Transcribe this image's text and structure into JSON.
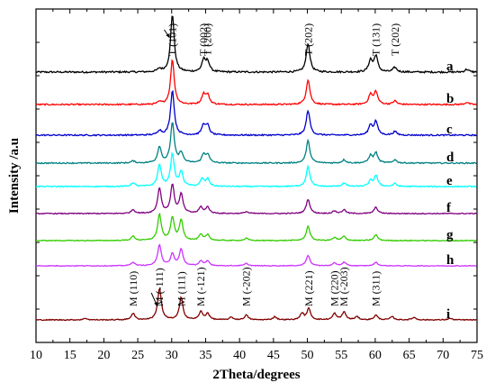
{
  "chart_data": {
    "type": "line",
    "title": "",
    "xlabel": "2Theta/degrees",
    "ylabel": "Intensity /a.u",
    "xlim": [
      10,
      75
    ],
    "x_ticks": [
      "10",
      "15",
      "20",
      "25",
      "30",
      "35",
      "40",
      "45",
      "50",
      "55",
      "60",
      "65",
      "70",
      "75"
    ],
    "y_ticks_shown": false,
    "grid": false,
    "legend": "none",
    "series": [
      {
        "name": "a",
        "color": "#000000",
        "peaks": [
          [
            28.2,
            0.05
          ],
          [
            30.1,
            1.0
          ],
          [
            34.7,
            0.2
          ],
          [
            35.3,
            0.18
          ],
          [
            50.1,
            0.5
          ],
          [
            59.3,
            0.2
          ],
          [
            60.1,
            0.28
          ],
          [
            62.9,
            0.08
          ],
          [
            73.5,
            0.05
          ]
        ]
      },
      {
        "name": "b",
        "color": "#ff0000",
        "peaks": [
          [
            28.2,
            0.05
          ],
          [
            30.1,
            1.0
          ],
          [
            34.7,
            0.22
          ],
          [
            35.3,
            0.2
          ],
          [
            50.1,
            0.55
          ],
          [
            59.3,
            0.22
          ],
          [
            60.1,
            0.28
          ],
          [
            62.9,
            0.08
          ],
          [
            73.5,
            0.05
          ]
        ]
      },
      {
        "name": "c",
        "color": "#0000cc",
        "peaks": [
          [
            28.2,
            0.1
          ],
          [
            30.1,
            1.0
          ],
          [
            34.7,
            0.22
          ],
          [
            35.3,
            0.2
          ],
          [
            50.1,
            0.55
          ],
          [
            59.3,
            0.22
          ],
          [
            60.1,
            0.3
          ],
          [
            62.9,
            0.08
          ]
        ]
      },
      {
        "name": "d",
        "color": "#008080",
        "peaks": [
          [
            24.3,
            0.05
          ],
          [
            28.2,
            0.4
          ],
          [
            30.1,
            1.0
          ],
          [
            31.4,
            0.25
          ],
          [
            34.7,
            0.2
          ],
          [
            35.3,
            0.2
          ],
          [
            50.1,
            0.55
          ],
          [
            55.4,
            0.08
          ],
          [
            59.3,
            0.18
          ],
          [
            60.1,
            0.25
          ],
          [
            62.9,
            0.08
          ]
        ]
      },
      {
        "name": "e",
        "color": "#00ffff",
        "peaks": [
          [
            24.3,
            0.1
          ],
          [
            28.2,
            0.6
          ],
          [
            30.1,
            0.9
          ],
          [
            31.4,
            0.4
          ],
          [
            34.5,
            0.2
          ],
          [
            35.3,
            0.2
          ],
          [
            50.1,
            0.55
          ],
          [
            55.4,
            0.1
          ],
          [
            59.3,
            0.15
          ],
          [
            60.1,
            0.3
          ],
          [
            62.9,
            0.08
          ]
        ]
      },
      {
        "name": "f",
        "color": "#800080",
        "peaks": [
          [
            24.3,
            0.12
          ],
          [
            28.2,
            0.8
          ],
          [
            30.1,
            0.9
          ],
          [
            31.4,
            0.6
          ],
          [
            34.3,
            0.2
          ],
          [
            35.3,
            0.2
          ],
          [
            41.0,
            0.06
          ],
          [
            50.1,
            0.45
          ],
          [
            54.0,
            0.08
          ],
          [
            55.4,
            0.12
          ],
          [
            60.1,
            0.2
          ]
        ]
      },
      {
        "name": "g",
        "color": "#33cc00",
        "peaks": [
          [
            24.3,
            0.15
          ],
          [
            28.2,
            0.9
          ],
          [
            30.1,
            0.8
          ],
          [
            31.4,
            0.7
          ],
          [
            34.3,
            0.2
          ],
          [
            35.3,
            0.2
          ],
          [
            41.0,
            0.08
          ],
          [
            50.1,
            0.5
          ],
          [
            54.0,
            0.1
          ],
          [
            55.4,
            0.15
          ],
          [
            60.1,
            0.2
          ]
        ]
      },
      {
        "name": "h",
        "color": "#cc33ff",
        "peaks": [
          [
            24.3,
            0.15
          ],
          [
            28.2,
            0.9
          ],
          [
            30.1,
            0.5
          ],
          [
            31.4,
            0.7
          ],
          [
            34.3,
            0.2
          ],
          [
            35.3,
            0.2
          ],
          [
            41.0,
            0.1
          ],
          [
            50.1,
            0.45
          ],
          [
            54.0,
            0.12
          ],
          [
            55.4,
            0.15
          ],
          [
            60.1,
            0.15
          ]
        ]
      },
      {
        "name": "i",
        "color": "#800000",
        "peaks": [
          [
            17.3,
            0.05
          ],
          [
            24.3,
            0.2
          ],
          [
            28.2,
            1.0
          ],
          [
            31.4,
            0.7
          ],
          [
            34.3,
            0.25
          ],
          [
            35.3,
            0.2
          ],
          [
            38.8,
            0.08
          ],
          [
            41.0,
            0.15
          ],
          [
            45.2,
            0.1
          ],
          [
            49.2,
            0.2
          ],
          [
            50.2,
            0.35
          ],
          [
            54.0,
            0.2
          ],
          [
            55.4,
            0.25
          ],
          [
            57.3,
            0.1
          ],
          [
            60.1,
            0.15
          ],
          [
            62.5,
            0.1
          ],
          [
            65.7,
            0.08
          ],
          [
            71.0,
            0.05
          ]
        ]
      }
    ],
    "annotations": [
      {
        "text": "T (101)",
        "x": 30.1,
        "series": "a"
      },
      {
        "text": "T (002)",
        "x": 34.7,
        "series": "a"
      },
      {
        "text": "T (200)",
        "x": 35.3,
        "series": "a"
      },
      {
        "text": "T (202)",
        "x": 50.1,
        "series": "a"
      },
      {
        "text": "T (131)",
        "x": 60.1,
        "series": "a"
      },
      {
        "text": "T (202)",
        "x": 62.9,
        "series": "a"
      },
      {
        "text": "M (110)",
        "x": 24.3,
        "series": "i"
      },
      {
        "text": "M (-111)",
        "x": 28.2,
        "series": "i"
      },
      {
        "text": "M (111)",
        "x": 31.4,
        "series": "i"
      },
      {
        "text": "M (-121)",
        "x": 34.3,
        "series": "i"
      },
      {
        "text": "M (-202)",
        "x": 41.0,
        "series": "i"
      },
      {
        "text": "M (221)",
        "x": 50.2,
        "series": "i"
      },
      {
        "text": "M (220)",
        "x": 54.0,
        "series": "i"
      },
      {
        "text": "M (-203)",
        "x": 55.4,
        "series": "i"
      },
      {
        "text": "M (311)",
        "x": 60.1,
        "series": "i"
      }
    ]
  }
}
